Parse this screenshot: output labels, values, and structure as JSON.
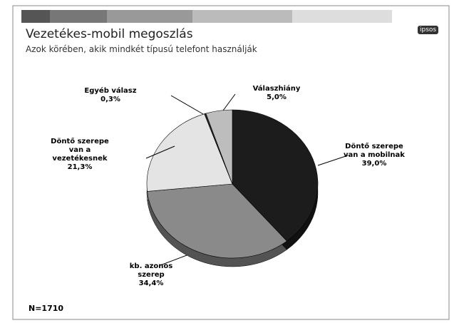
{
  "chart_data": {
    "type": "pie",
    "title": "Vezetékes-mobil megoszlás",
    "subtitle": "Azok körében, akik mindkét típusú telefont használják",
    "categories": [
      "Döntő szerepe van a mobilnak",
      "kb. azonos szerep",
      "Döntő szerepe van a vezetékesnek",
      "Egyéb válasz",
      "Válaszhiány"
    ],
    "values": [
      39.0,
      34.4,
      21.3,
      0.3,
      5.0
    ],
    "value_labels": [
      "39,0%",
      "34,4%",
      "21,3%",
      "0,3%",
      "5,0%"
    ],
    "colors": [
      "#1c1c1c",
      "#8a8a8a",
      "#e4e4e4",
      "#2a2a2a",
      "#bdbdbd"
    ],
    "note": "N=1710",
    "logo": "ipsos"
  }
}
